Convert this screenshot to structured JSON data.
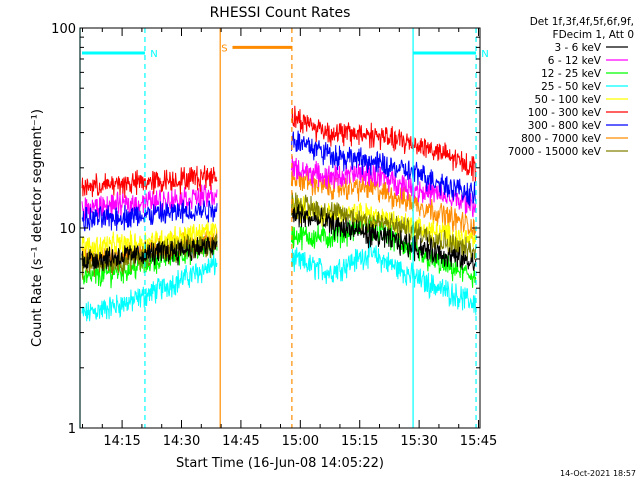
{
  "chart_data": {
    "type": "line",
    "title": "RHESSI Count Rates",
    "xlabel": "Start Time (16-Jun-08 14:05:22)",
    "ylabel": "Count Rate (s⁻¹ detector segment⁻¹)",
    "yscale": "log",
    "ylim": [
      1,
      100
    ],
    "xlim_minutes": [
      -1,
      100
    ],
    "x_ticks": [
      {
        "label": "14:15",
        "minute": 9.63
      },
      {
        "label": "14:30",
        "minute": 24.63
      },
      {
        "label": "14:45",
        "minute": 39.63
      },
      {
        "label": "15:00",
        "minute": 54.63
      },
      {
        "label": "15:15",
        "minute": 69.63
      },
      {
        "label": "15:30",
        "minute": 84.63
      },
      {
        "label": "15:45",
        "minute": 99.63
      }
    ],
    "y_ticks": [
      {
        "label": "1",
        "value": 1
      },
      {
        "label": "10",
        "value": 10
      },
      {
        "label": "100",
        "value": 100
      }
    ],
    "legend_header": [
      "Det 1f,3f,4f,5f,6f,9f,",
      "FDecim 1, Att 0"
    ],
    "legend_position": "right",
    "timestamp": "14-Oct-2021 18:57",
    "gap_minutes": [
      33.6,
      52.4
    ],
    "series": [
      {
        "name": "3 - 6 keV",
        "color": "#000000",
        "values": [
          7.0,
          7.3,
          7.8,
          8.1,
          11.8,
          10.5,
          9.3,
          8.0,
          6.6
        ]
      },
      {
        "name": "6 - 12 keV",
        "color": "#ff00ff",
        "values": [
          12.5,
          13.3,
          14.0,
          14.6,
          20.0,
          18.0,
          18.8,
          15.5,
          13.0
        ]
      },
      {
        "name": "12 - 25 keV",
        "color": "#00ff00",
        "values": [
          5.6,
          6.3,
          7.5,
          8.3,
          9.2,
          9.0,
          10.5,
          7.2,
          5.7
        ]
      },
      {
        "name": "25 - 50 keV",
        "color": "#00ffff",
        "values": [
          3.7,
          4.3,
          5.5,
          6.6,
          7.0,
          6.0,
          7.5,
          5.5,
          4.2
        ]
      },
      {
        "name": "50 - 100 keV",
        "color": "#ffff00",
        "values": [
          8.0,
          8.4,
          9.0,
          9.7,
          13.0,
          11.5,
          11.8,
          10.0,
          8.6
        ]
      },
      {
        "name": "100 - 300 keV",
        "color": "#ff0000",
        "values": [
          16.0,
          16.8,
          17.5,
          18.5,
          36.0,
          30.0,
          29.5,
          26.0,
          20.0
        ]
      },
      {
        "name": "300 - 800 keV",
        "color": "#0000ff",
        "values": [
          11.0,
          11.5,
          12.0,
          12.5,
          28.0,
          23.5,
          21.5,
          18.5,
          14.5
        ]
      },
      {
        "name": "800 - 7000 keV",
        "color": "#ff8c00",
        "values": [
          7.0,
          7.5,
          8.4,
          8.8,
          18.0,
          16.0,
          16.0,
          13.0,
          10.0
        ]
      },
      {
        "name": "7000 - 15000 keV",
        "color": "#808000",
        "values": [
          6.5,
          7.0,
          7.9,
          8.3,
          13.5,
          12.0,
          11.0,
          9.5,
          7.5
        ]
      }
    ],
    "series_x_minutes": [
      -0.5,
      12,
      24,
      33.3,
      52.7,
      62,
      72,
      85,
      99
    ],
    "markers": [
      {
        "label": "N",
        "color": "#00ffff",
        "y_value": 75,
        "x_from": -0.5,
        "x_to": 15.4
      },
      {
        "label": "N",
        "color": "#00ffff",
        "y_value": 75,
        "x_from": 83.1,
        "x_to": 99.0
      },
      {
        "label": "S",
        "color": "#ff8c00",
        "y_value": 80,
        "x_from": 37.5,
        "x_to": 52.5
      }
    ],
    "vlines": [
      {
        "minute": -1.0,
        "color": "#00ffff",
        "style": "solid"
      },
      {
        "minute": 15.4,
        "color": "#00ffff",
        "style": "dashed"
      },
      {
        "minute": 34.4,
        "color": "#ff8c00",
        "style": "solid"
      },
      {
        "minute": 52.5,
        "color": "#ff8c00",
        "style": "dashed"
      },
      {
        "minute": 83.1,
        "color": "#00ffff",
        "style": "solid"
      },
      {
        "minute": 99.0,
        "color": "#00ffff",
        "style": "dashed"
      }
    ]
  }
}
